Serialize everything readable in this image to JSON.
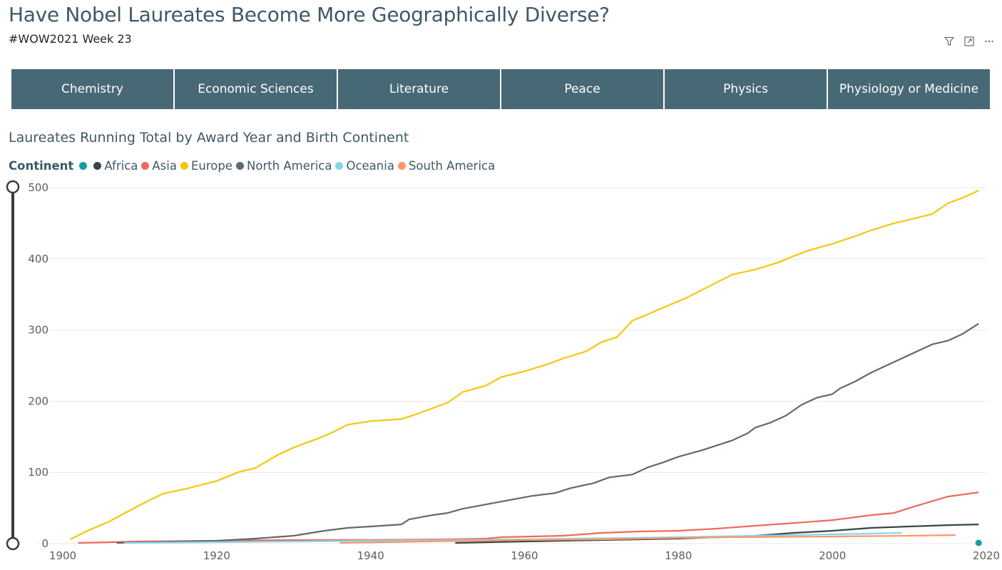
{
  "header": {
    "title": "Have Nobel Laureates Become More Geographically Diverse?",
    "subtitle": "#WOW2021 Week 23"
  },
  "toolbar": {
    "icons": [
      "filter-icon",
      "focus-mode-icon",
      "more-options-icon"
    ]
  },
  "tabs": [
    {
      "label": "Chemistry"
    },
    {
      "label": "Economic Sciences"
    },
    {
      "label": "Literature"
    },
    {
      "label": "Peace"
    },
    {
      "label": "Physics"
    },
    {
      "label": "Physiology or Medicine"
    }
  ],
  "colors": {
    "tab_bg": "#476976",
    "title": "#3f5866"
  },
  "chart_data": {
    "type": "line",
    "title": "Laureates Running Total by Award Year and Birth Continent",
    "legend_title": "Continent",
    "legend_position": "top-left",
    "xlim": [
      1900,
      2020
    ],
    "ylim": [
      0,
      500
    ],
    "x_ticks": [
      1900,
      1920,
      1940,
      1960,
      1980,
      2000,
      2020
    ],
    "y_ticks": [
      0,
      100,
      200,
      300,
      400,
      500
    ],
    "grid": true,
    "series": [
      {
        "name": "",
        "color": "#1a9ba6",
        "points": [
          [
            2019,
            1
          ]
        ]
      },
      {
        "name": "Africa",
        "color": "#374649",
        "points": [
          [
            1951,
            1
          ],
          [
            1960,
            3
          ],
          [
            1970,
            5
          ],
          [
            1980,
            7
          ],
          [
            1985,
            9
          ],
          [
            1990,
            11
          ],
          [
            1995,
            15
          ],
          [
            2000,
            18
          ],
          [
            2005,
            22
          ],
          [
            2010,
            24
          ],
          [
            2015,
            26
          ],
          [
            2019,
            27
          ]
        ]
      },
      {
        "name": "Asia",
        "color": "#ed6a5e",
        "points": [
          [
            1902,
            1
          ],
          [
            1910,
            3
          ],
          [
            1920,
            4
          ],
          [
            1930,
            5
          ],
          [
            1940,
            5
          ],
          [
            1950,
            6
          ],
          [
            1955,
            7
          ],
          [
            1957,
            9
          ],
          [
            1965,
            11
          ],
          [
            1970,
            15
          ],
          [
            1975,
            17
          ],
          [
            1980,
            18
          ],
          [
            1985,
            21
          ],
          [
            1990,
            25
          ],
          [
            1995,
            29
          ],
          [
            2000,
            33
          ],
          [
            2005,
            40
          ],
          [
            2008,
            43
          ],
          [
            2010,
            50
          ],
          [
            2015,
            66
          ],
          [
            2019,
            72
          ]
        ]
      },
      {
        "name": "Europe",
        "color": "#f2c80f",
        "points": [
          [
            1901,
            6
          ],
          [
            1903,
            17
          ],
          [
            1906,
            31
          ],
          [
            1910,
            54
          ],
          [
            1913,
            70
          ],
          [
            1916,
            77
          ],
          [
            1920,
            88
          ],
          [
            1923,
            101
          ],
          [
            1925,
            106
          ],
          [
            1928,
            125
          ],
          [
            1930,
            135
          ],
          [
            1933,
            147
          ],
          [
            1935,
            156
          ],
          [
            1937,
            167
          ],
          [
            1940,
            172
          ],
          [
            1944,
            175
          ],
          [
            1946,
            182
          ],
          [
            1950,
            198
          ],
          [
            1952,
            213
          ],
          [
            1955,
            222
          ],
          [
            1957,
            234
          ],
          [
            1960,
            242
          ],
          [
            1963,
            252
          ],
          [
            1965,
            260
          ],
          [
            1968,
            270
          ],
          [
            1970,
            283
          ],
          [
            1972,
            290
          ],
          [
            1974,
            313
          ],
          [
            1976,
            322
          ],
          [
            1979,
            336
          ],
          [
            1981,
            345
          ],
          [
            1983,
            356
          ],
          [
            1985,
            367
          ],
          [
            1987,
            378
          ],
          [
            1990,
            385
          ],
          [
            1993,
            395
          ],
          [
            1995,
            404
          ],
          [
            1997,
            412
          ],
          [
            2000,
            421
          ],
          [
            2003,
            432
          ],
          [
            2005,
            440
          ],
          [
            2008,
            450
          ],
          [
            2010,
            455
          ],
          [
            2013,
            463
          ],
          [
            2015,
            478
          ],
          [
            2017,
            486
          ],
          [
            2019,
            496
          ]
        ]
      },
      {
        "name": "North America",
        "color": "#5f6b6d",
        "points": [
          [
            1907,
            1
          ],
          [
            1920,
            4
          ],
          [
            1925,
            7
          ],
          [
            1930,
            11
          ],
          [
            1934,
            18
          ],
          [
            1937,
            22
          ],
          [
            1940,
            24
          ],
          [
            1944,
            27
          ],
          [
            1945,
            34
          ],
          [
            1948,
            40
          ],
          [
            1950,
            43
          ],
          [
            1952,
            49
          ],
          [
            1955,
            55
          ],
          [
            1958,
            61
          ],
          [
            1961,
            67
          ],
          [
            1964,
            71
          ],
          [
            1966,
            78
          ],
          [
            1969,
            85
          ],
          [
            1971,
            93
          ],
          [
            1974,
            97
          ],
          [
            1976,
            107
          ],
          [
            1978,
            114
          ],
          [
            1980,
            122
          ],
          [
            1983,
            131
          ],
          [
            1985,
            138
          ],
          [
            1987,
            145
          ],
          [
            1989,
            155
          ],
          [
            1990,
            163
          ],
          [
            1992,
            170
          ],
          [
            1994,
            180
          ],
          [
            1996,
            195
          ],
          [
            1998,
            205
          ],
          [
            2000,
            210
          ],
          [
            2001,
            218
          ],
          [
            2003,
            228
          ],
          [
            2005,
            240
          ],
          [
            2007,
            250
          ],
          [
            2009,
            260
          ],
          [
            2011,
            270
          ],
          [
            2013,
            280
          ],
          [
            2015,
            285
          ],
          [
            2017,
            295
          ],
          [
            2019,
            309
          ]
        ]
      },
      {
        "name": "Oceania",
        "color": "#8ad4eb",
        "points": [
          [
            1908,
            1
          ],
          [
            1920,
            2
          ],
          [
            1940,
            4
          ],
          [
            1960,
            6
          ],
          [
            1980,
            9
          ],
          [
            1990,
            11
          ],
          [
            2000,
            13
          ],
          [
            2005,
            14
          ],
          [
            2009,
            15
          ]
        ]
      },
      {
        "name": "South America",
        "color": "#fe9666",
        "points": [
          [
            1936,
            1
          ],
          [
            1947,
            3
          ],
          [
            1960,
            5
          ],
          [
            1970,
            6
          ],
          [
            1980,
            8
          ],
          [
            1987,
            9
          ],
          [
            2000,
            10
          ],
          [
            2010,
            11
          ],
          [
            2016,
            12
          ]
        ]
      }
    ]
  }
}
